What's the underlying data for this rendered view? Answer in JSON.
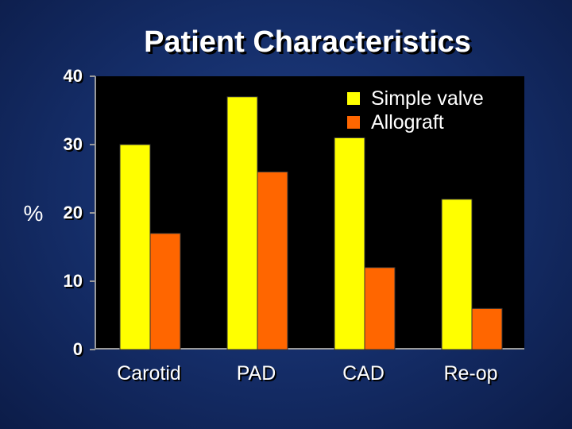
{
  "chart_data": {
    "type": "bar",
    "title": "Patient Characteristics",
    "ylabel": "%",
    "xlabel": "",
    "ylim": [
      0,
      40
    ],
    "yticks": [
      "0",
      "10",
      "20",
      "30",
      "40"
    ],
    "categories": [
      "Carotid",
      "PAD",
      "CAD",
      "Re-op"
    ],
    "series": [
      {
        "name": "Simple valve",
        "values": [
          30,
          37,
          31,
          22
        ]
      },
      {
        "name": "Allograft",
        "values": [
          17,
          26,
          12,
          6
        ]
      }
    ],
    "legend_position": "top-right",
    "grid": false
  },
  "colors": {
    "simple_valve": "#ffff00",
    "allograft": "#ff6600",
    "plot_background": "#000000"
  }
}
